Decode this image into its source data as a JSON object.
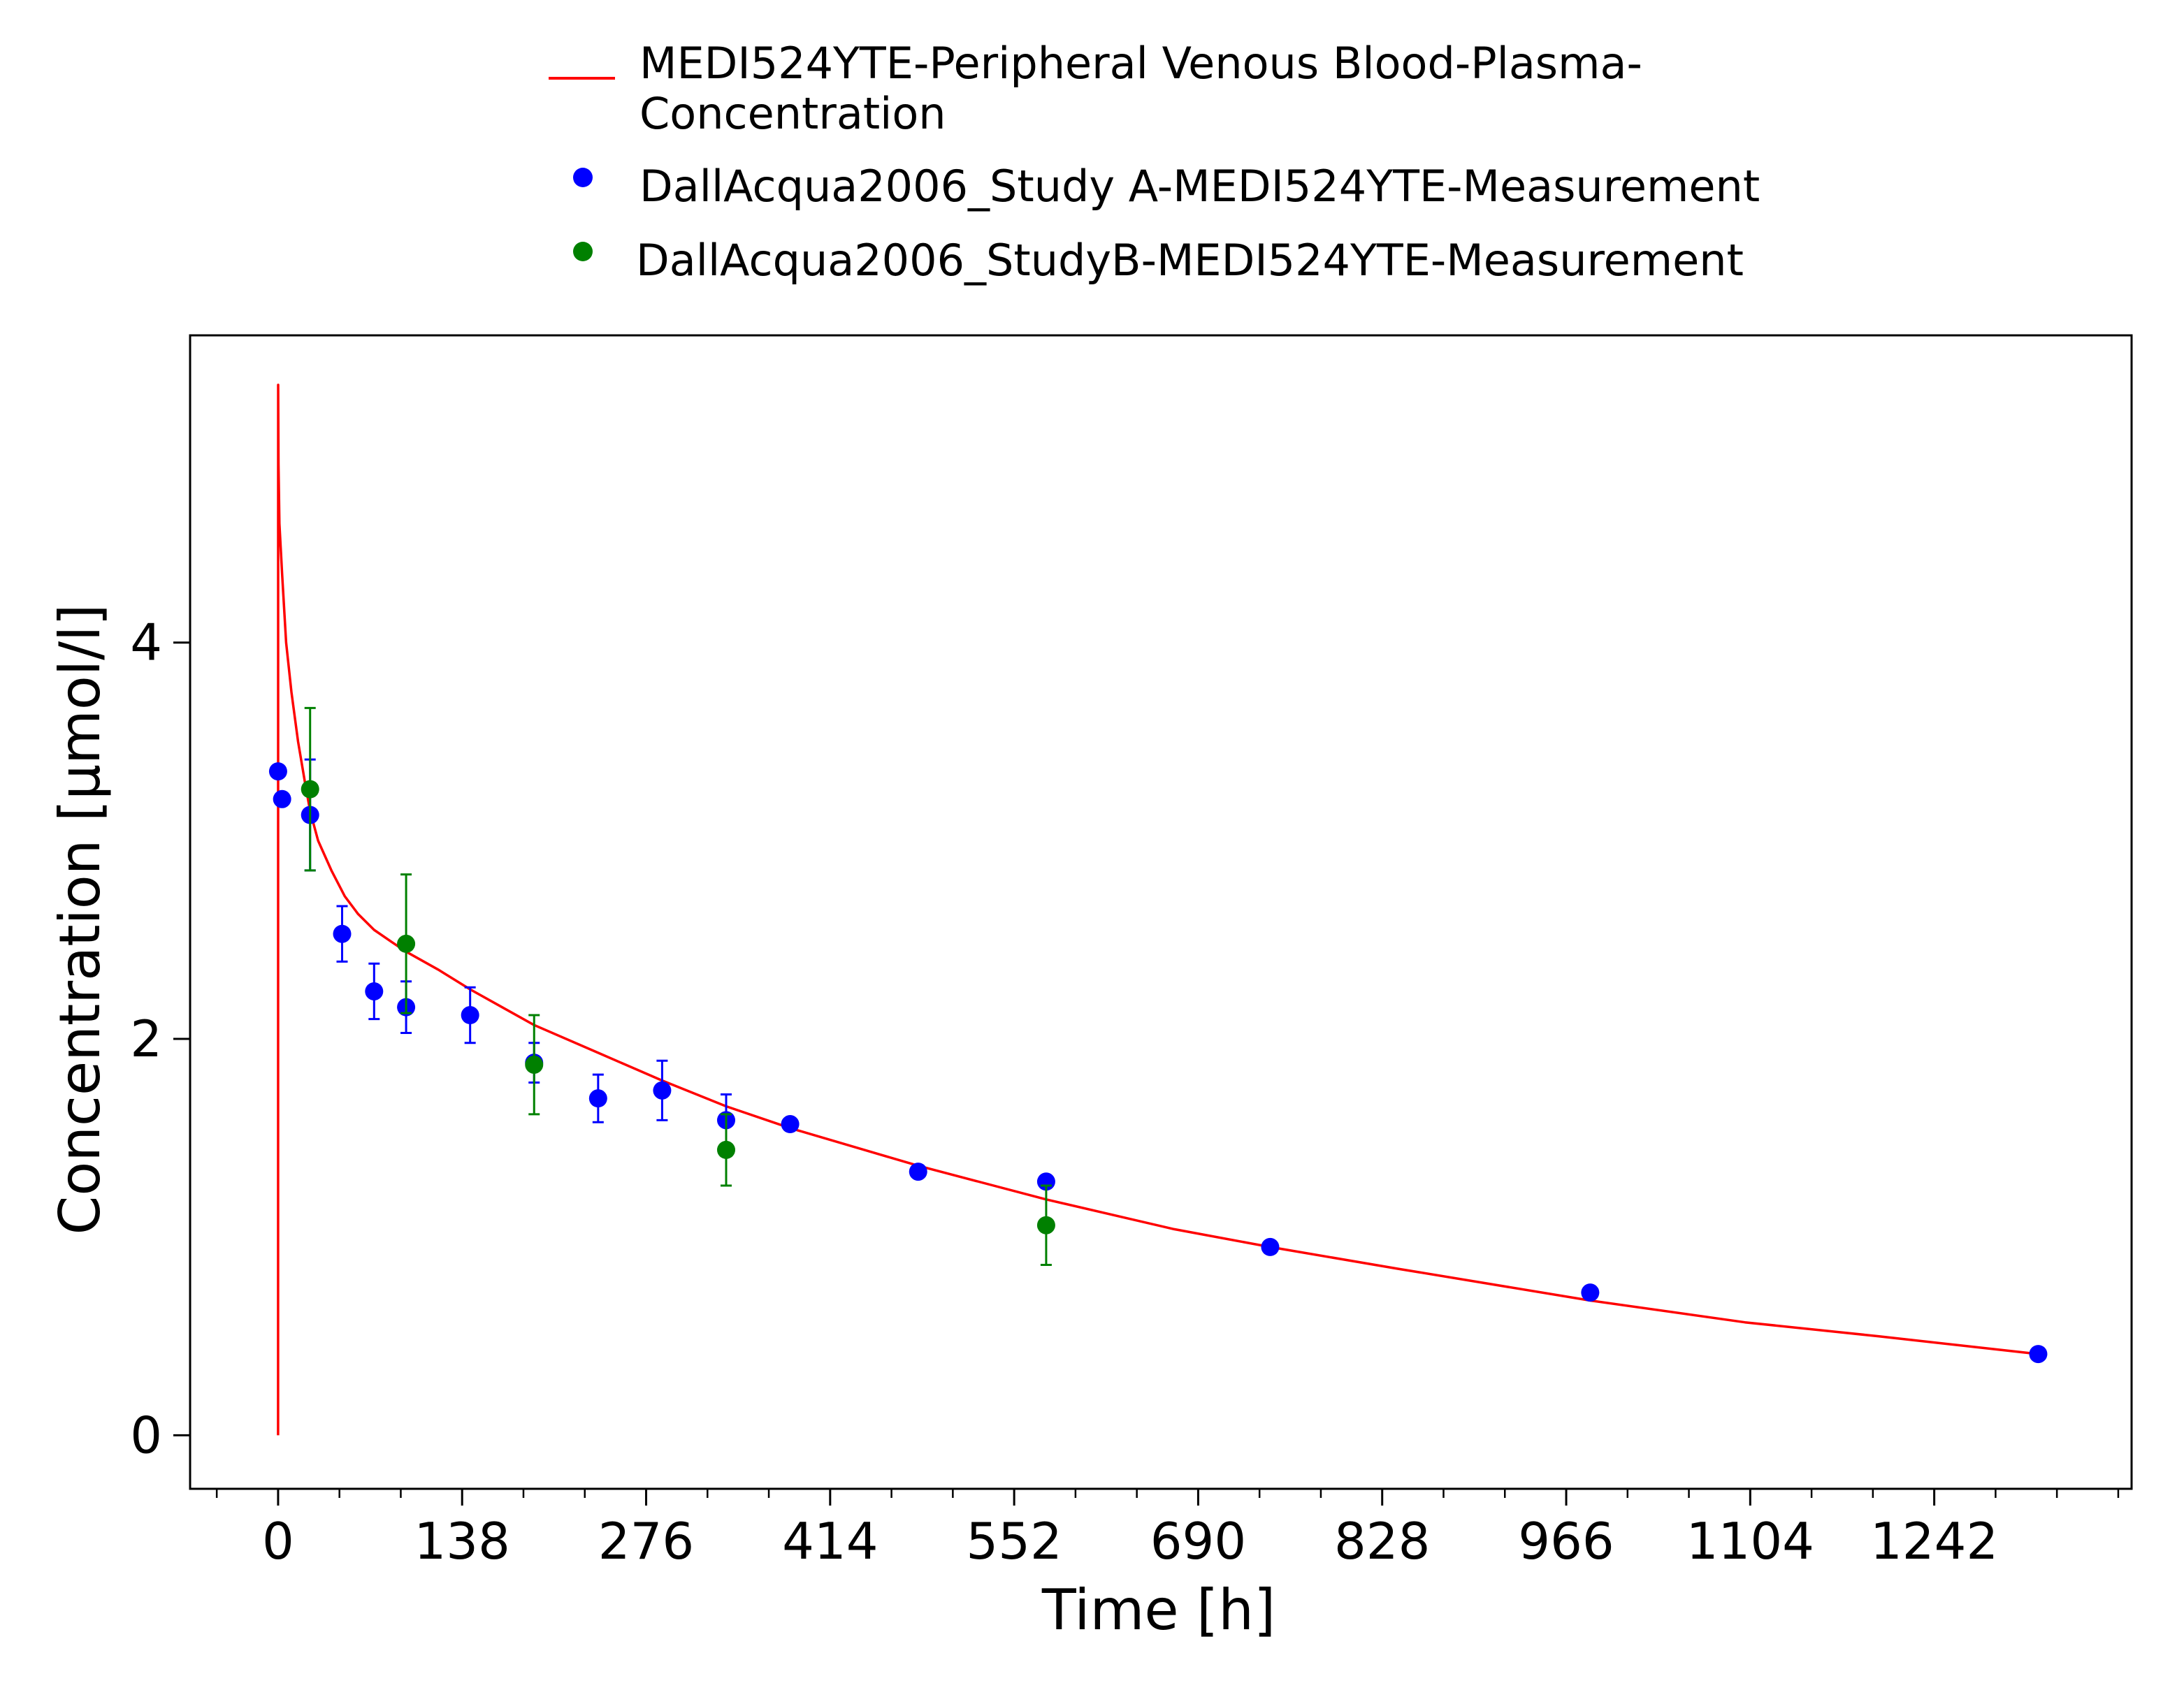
{
  "chart_data": {
    "type": "scatter",
    "xlabel": "Time [h]",
    "ylabel": "Concentration [µmol/l]",
    "xlim": [
      -66,
      1390
    ],
    "ylim": [
      -0.27,
      5.55
    ],
    "x_ticks": [
      "0",
      "138",
      "276",
      "414",
      "552",
      "690",
      "828",
      "966",
      "1104",
      "1242"
    ],
    "x_tick_values": [
      0,
      138,
      276,
      414,
      552,
      690,
      828,
      966,
      1104,
      1242
    ],
    "y_ticks": [
      "0",
      "2",
      "4"
    ],
    "y_tick_values": [
      0,
      2,
      4
    ],
    "legend_position": "top-center",
    "grid": false,
    "legend": [
      {
        "label_lines": [
          "MEDI524YTE-Peripheral Venous Blood-Plasma-",
          "Concentration"
        ],
        "marker": "line",
        "color": "#ff0000"
      },
      {
        "label_lines": [
          "DallAcqua2006_Study A-MEDI524YTE-Measurement"
        ],
        "marker": "dot",
        "color": "#0000ff"
      },
      {
        "label_lines": [
          "DallAcqua2006_StudyB-MEDI524YTE-Measurement"
        ],
        "marker": "dot",
        "color": "#008000"
      }
    ],
    "series": [
      {
        "name": "MEDI524YTE-Peripheral Venous Blood-Plasma-Concentration",
        "kind": "line",
        "color": "#ff0000",
        "x": [
          0,
          0.05,
          0.3,
          1,
          3,
          6,
          10,
          15,
          20,
          24,
          30,
          40,
          50,
          60,
          72,
          85,
          96,
          120,
          144,
          168,
          192,
          240,
          288,
          336,
          384,
          480,
          576,
          672,
          744,
          840,
          984,
          1100,
          1200,
          1320
        ],
        "y": [
          0,
          5.3,
          4.9,
          4.6,
          4.35,
          4.0,
          3.75,
          3.5,
          3.3,
          3.15,
          3.0,
          2.85,
          2.72,
          2.63,
          2.55,
          2.49,
          2.44,
          2.35,
          2.25,
          2.16,
          2.07,
          1.93,
          1.79,
          1.66,
          1.55,
          1.36,
          1.19,
          1.04,
          0.95,
          0.84,
          0.68,
          0.57,
          0.5,
          0.41
        ]
      },
      {
        "name": "DallAcqua2006_Study A-MEDI524YTE-Measurement",
        "kind": "scatter",
        "color": "#0000ff",
        "x": [
          0,
          3,
          24,
          48,
          72,
          96,
          144,
          192,
          240,
          288,
          336,
          384,
          480,
          576,
          744,
          984,
          1320
        ],
        "y": [
          3.35,
          3.21,
          3.13,
          2.53,
          2.24,
          2.16,
          2.12,
          1.88,
          1.7,
          1.74,
          1.59,
          1.57,
          1.33,
          1.28,
          0.95,
          0.72,
          0.41
        ],
        "err": [
          0,
          0,
          0.28,
          0.14,
          0.14,
          0.13,
          0.14,
          0.1,
          0.12,
          0.15,
          0.13,
          0,
          0,
          0,
          0,
          0,
          0
        ]
      },
      {
        "name": "DallAcqua2006_StudyB-MEDI524YTE-Measurement",
        "kind": "scatter",
        "color": "#008000",
        "x": [
          24,
          96,
          192,
          336,
          576
        ],
        "y": [
          3.26,
          2.48,
          1.87,
          1.44,
          1.06
        ],
        "err": [
          0.41,
          0.35,
          0.25,
          0.18,
          0.2
        ]
      }
    ]
  }
}
